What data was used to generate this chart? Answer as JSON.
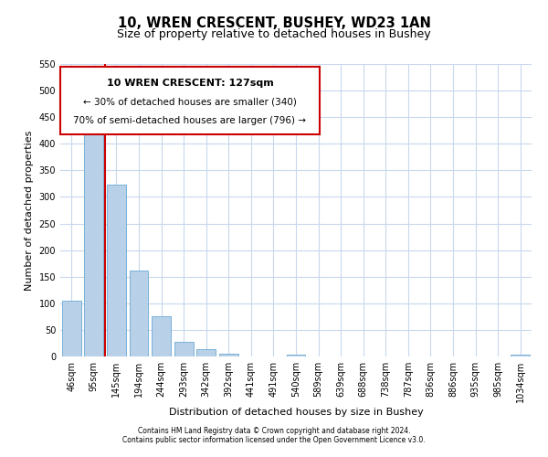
{
  "title": "10, WREN CRESCENT, BUSHEY, WD23 1AN",
  "subtitle": "Size of property relative to detached houses in Bushey",
  "xlabel": "Distribution of detached houses by size in Bushey",
  "ylabel": "Number of detached properties",
  "bar_labels": [
    "46sqm",
    "95sqm",
    "145sqm",
    "194sqm",
    "244sqm",
    "293sqm",
    "342sqm",
    "392sqm",
    "441sqm",
    "491sqm",
    "540sqm",
    "589sqm",
    "639sqm",
    "688sqm",
    "738sqm",
    "787sqm",
    "836sqm",
    "886sqm",
    "935sqm",
    "985sqm",
    "1034sqm"
  ],
  "bar_values": [
    105,
    427,
    323,
    162,
    75,
    27,
    13,
    5,
    0,
    0,
    3,
    0,
    0,
    0,
    0,
    0,
    0,
    0,
    0,
    0,
    4
  ],
  "bar_color": "#b8d0e8",
  "bar_edge_color": "#6aaad4",
  "vline_color": "#cc0000",
  "vline_pos": 1.5,
  "ylim": [
    0,
    550
  ],
  "yticks": [
    0,
    50,
    100,
    150,
    200,
    250,
    300,
    350,
    400,
    450,
    500,
    550
  ],
  "annotation_title": "10 WREN CRESCENT: 127sqm",
  "annotation_line1": "← 30% of detached houses are smaller (340)",
  "annotation_line2": "70% of semi-detached houses are larger (796) →",
  "annotation_box_color": "#ffffff",
  "annotation_box_edge": "#cc0000",
  "footnote1": "Contains HM Land Registry data © Crown copyright and database right 2024.",
  "footnote2": "Contains public sector information licensed under the Open Government Licence v3.0.",
  "background_color": "#ffffff",
  "grid_color": "#c8d8ec",
  "title_fontsize": 10.5,
  "subtitle_fontsize": 9,
  "ylabel_fontsize": 8,
  "xlabel_fontsize": 8,
  "tick_fontsize": 7,
  "ann_title_fontsize": 8,
  "ann_text_fontsize": 7.5,
  "footnote_fontsize": 5.5
}
